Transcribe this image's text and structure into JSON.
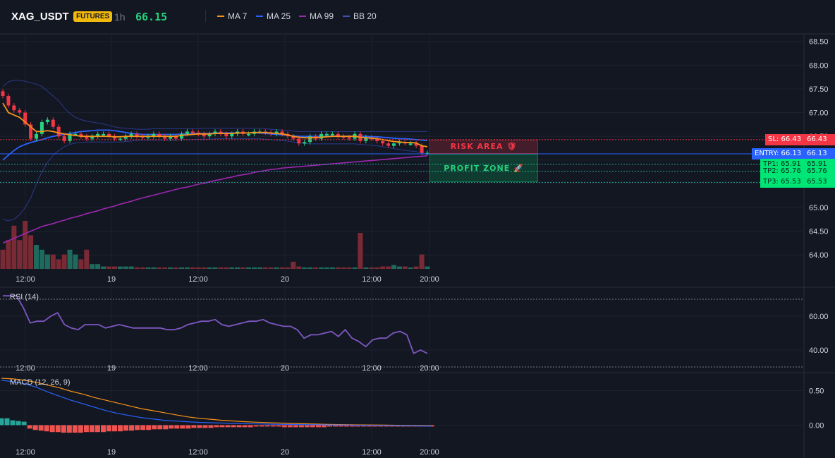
{
  "header": {
    "symbol": "XAG_USDT",
    "badge": "FUTURES",
    "timeframe": "1h",
    "last_price": "66.15",
    "legend": [
      {
        "label": "MA 7",
        "color": "#f7931a"
      },
      {
        "label": "MA 25",
        "color": "#2962ff"
      },
      {
        "label": "MA 99",
        "color": "#9c27b0"
      },
      {
        "label": "BB 20",
        "color": "#3f51b5"
      }
    ]
  },
  "levels": {
    "sl": {
      "label": "SL: 66.43",
      "value_text": "66.43",
      "value": 66.43,
      "color": "#f23645"
    },
    "entry": {
      "label": "ENTRY: 66.13",
      "value_text": "66.13",
      "value": 66.13,
      "color": "#2962ff"
    },
    "tp": [
      {
        "label": "TP1: 65.91",
        "value_text": "65.91",
        "value": 65.91
      },
      {
        "label": "TP2: 65.76",
        "value_text": "65.76",
        "value": 65.76
      },
      {
        "label": "TP3: 65.53",
        "value_text": "65.53",
        "value": 65.53
      }
    ],
    "tp_color": "#00e676",
    "risk_label": "RISK AREA 🛡",
    "profit_label": "PROFIT ZONE 🚀"
  },
  "chart_data": [
    {
      "type": "candlestick",
      "title": "",
      "ylim": [
        63.75,
        68.6
      ],
      "y_ticks": [
        "68.50",
        "68.00",
        "67.50",
        "67.00",
        "66.50",
        "66.00",
        "65.50",
        "65.00",
        "64.50",
        "64.00"
      ],
      "y_tick_values": [
        68.5,
        68.0,
        67.5,
        67.0,
        66.5,
        66.0,
        65.5,
        65.0,
        64.5,
        64.0
      ],
      "x_ticks": [
        "12:00",
        "19",
        "12:00",
        "20",
        "12:00",
        "20:00"
      ],
      "closes": [
        67.35,
        67.15,
        67.05,
        67.0,
        66.75,
        66.45,
        66.55,
        66.8,
        66.85,
        66.7,
        66.5,
        66.4,
        66.55,
        66.55,
        66.5,
        66.45,
        66.5,
        66.55,
        66.55,
        66.5,
        66.45,
        66.45,
        66.5,
        66.55,
        66.5,
        66.48,
        66.5,
        66.55,
        66.5,
        66.45,
        66.5,
        66.45,
        66.55,
        66.6,
        66.58,
        66.55,
        66.5,
        66.55,
        66.6,
        66.55,
        66.5,
        66.55,
        66.6,
        66.55,
        66.55,
        66.6,
        66.6,
        66.58,
        66.55,
        66.6,
        66.55,
        66.5,
        66.45,
        66.35,
        66.38,
        66.5,
        66.45,
        66.55,
        66.55,
        66.55,
        66.5,
        66.48,
        66.45,
        66.55,
        66.4,
        66.48,
        66.45,
        66.4,
        66.35,
        66.3,
        66.35,
        66.38,
        66.35,
        66.35,
        66.3,
        66.15,
        66.15
      ],
      "ma7": [
        67.2,
        67.0,
        66.95,
        66.9,
        66.8,
        66.7,
        66.6,
        66.6,
        66.62,
        66.6,
        66.57,
        66.55,
        66.53,
        66.52,
        66.5,
        66.5,
        66.5,
        66.5,
        66.5,
        66.5,
        66.49,
        66.49,
        66.5,
        66.5,
        66.5,
        66.5,
        66.5,
        66.5,
        66.5,
        66.5,
        66.5,
        66.5,
        66.52,
        66.53,
        66.54,
        66.55,
        66.55,
        66.55,
        66.56,
        66.56,
        66.56,
        66.56,
        66.57,
        66.57,
        66.57,
        66.58,
        66.58,
        66.58,
        66.57,
        66.56,
        66.55,
        66.53,
        66.5,
        66.48,
        66.47,
        66.47,
        66.47,
        66.48,
        66.49,
        66.5,
        66.5,
        66.5,
        66.5,
        66.5,
        66.48,
        66.47,
        66.46,
        66.45,
        66.43,
        66.41,
        66.39,
        66.38,
        66.37,
        66.37,
        66.36,
        66.3,
        66.28
      ],
      "ma25": [
        66.0,
        66.1,
        66.2,
        66.28,
        66.33,
        66.37,
        66.4,
        66.43,
        66.47,
        66.5,
        66.52,
        66.54,
        66.56,
        66.58,
        66.6,
        66.61,
        66.62,
        66.63,
        66.63,
        66.63,
        66.62,
        66.6,
        66.58,
        66.56,
        66.55,
        66.54,
        66.54,
        66.54,
        66.54,
        66.54,
        66.54,
        66.54,
        66.55,
        66.55,
        66.56,
        66.56,
        66.56,
        66.56,
        66.57,
        66.57,
        66.57,
        66.57,
        66.57,
        66.57,
        66.57,
        66.57,
        66.57,
        66.56,
        66.55,
        66.54,
        66.53,
        66.52,
        66.51,
        66.5,
        66.5,
        66.5,
        66.5,
        66.5,
        66.5,
        66.5,
        66.5,
        66.5,
        66.5,
        66.5,
        66.5,
        66.5,
        66.49,
        66.49,
        66.48,
        66.47,
        66.46,
        66.45,
        66.45,
        66.44,
        66.43,
        66.42,
        66.41
      ],
      "ma99": [
        64.25,
        64.3,
        64.35,
        64.4,
        64.45,
        64.5,
        64.55,
        64.6,
        64.63,
        64.66,
        64.7,
        64.73,
        64.77,
        64.8,
        64.83,
        64.87,
        64.9,
        64.93,
        64.97,
        65.0,
        65.03,
        65.07,
        65.1,
        65.13,
        65.17,
        65.2,
        65.23,
        65.26,
        65.29,
        65.32,
        65.35,
        65.38,
        65.41,
        65.43,
        65.46,
        65.49,
        65.51,
        65.54,
        65.57,
        65.59,
        65.62,
        65.64,
        65.67,
        65.69,
        65.71,
        65.74,
        65.76,
        65.78,
        65.8,
        65.81,
        65.83,
        65.84,
        65.85,
        65.86,
        65.87,
        65.88,
        65.89,
        65.9,
        65.91,
        65.92,
        65.93,
        65.94,
        65.95,
        65.96,
        65.97,
        65.98,
        65.99,
        66.0,
        66.01,
        66.02,
        66.03,
        66.04,
        66.05,
        66.06,
        66.07,
        66.08,
        66.09
      ],
      "bb_upper": [
        67.55,
        67.65,
        67.68,
        67.68,
        67.66,
        67.63,
        67.6,
        67.55,
        67.45,
        67.35,
        67.25,
        67.1,
        66.98,
        66.9,
        66.85,
        66.82,
        66.8,
        66.78,
        66.76,
        66.73,
        66.7,
        66.68,
        66.67,
        66.66,
        66.65,
        66.65,
        66.65,
        66.66,
        66.66,
        66.66,
        66.66,
        66.66,
        66.66,
        66.66,
        66.66,
        66.66,
        66.67,
        66.67,
        66.67,
        66.67,
        66.67,
        66.67,
        66.67,
        66.67,
        66.67,
        66.67,
        66.67,
        66.66,
        66.65,
        66.64,
        66.63,
        66.62,
        66.61,
        66.6,
        66.6,
        66.6,
        66.6,
        66.6,
        66.6,
        66.6,
        66.6,
        66.6,
        66.6,
        66.6,
        66.6,
        66.6,
        66.6,
        66.6,
        66.6,
        66.6,
        66.6,
        66.6,
        66.6,
        66.6,
        66.6,
        66.6,
        66.6
      ],
      "bb_lower": [
        64.75,
        64.72,
        64.75,
        64.85,
        65.0,
        65.2,
        65.5,
        65.75,
        65.95,
        66.1,
        66.2,
        66.28,
        66.33,
        66.36,
        66.37,
        66.38,
        66.38,
        66.38,
        66.38,
        66.38,
        66.38,
        66.38,
        66.39,
        66.4,
        66.41,
        66.42,
        66.42,
        66.42,
        66.42,
        66.42,
        66.42,
        66.42,
        66.43,
        66.43,
        66.43,
        66.44,
        66.44,
        66.44,
        66.45,
        66.45,
        66.45,
        66.45,
        66.45,
        66.45,
        66.45,
        66.45,
        66.45,
        66.44,
        66.43,
        66.42,
        66.41,
        66.4,
        66.38,
        66.36,
        66.35,
        66.34,
        66.34,
        66.34,
        66.34,
        66.34,
        66.34,
        66.34,
        66.34,
        66.34,
        66.33,
        66.32,
        66.31,
        66.3,
        66.28,
        66.26,
        66.24,
        66.22,
        66.2,
        66.19,
        66.18,
        66.15,
        66.12
      ],
      "volumes": [
        4,
        6,
        9,
        6,
        10,
        7,
        5,
        4,
        3,
        3,
        2,
        3,
        4,
        3,
        2,
        4,
        1,
        1,
        0.5,
        0.5,
        0.5,
        0.5,
        0.5,
        0.5,
        0.3,
        0.3,
        0.3,
        0.3,
        0.3,
        0.3,
        0.3,
        0.3,
        0.3,
        0.3,
        0.3,
        0.3,
        0.3,
        0.3,
        0.3,
        0.3,
        0.3,
        0.3,
        0.3,
        0.3,
        0.3,
        0.3,
        0.3,
        0.3,
        0.3,
        0.3,
        0.3,
        0.3,
        1.5,
        0.5,
        0.3,
        0.3,
        0.3,
        0.3,
        0.3,
        0.3,
        0.3,
        0.3,
        0.3,
        0.3,
        7.5,
        0.3,
        0.3,
        0.3,
        0.5,
        0.5,
        0.8,
        0.5,
        0.5,
        0.3,
        0.5,
        3,
        0.5
      ]
    },
    {
      "type": "line",
      "title": "RSI (14)",
      "ylim": [
        30,
        75
      ],
      "y_ticks": [
        "60.00",
        "40.00"
      ],
      "y_tick_values": [
        60,
        40
      ],
      "x_ticks": [
        "12:00",
        "19",
        "12:00",
        "20",
        "12:00",
        "20:00"
      ],
      "values": [
        72,
        72,
        72,
        65,
        56,
        57,
        57,
        60,
        62,
        55,
        53,
        52,
        55,
        55,
        55,
        53,
        54,
        55,
        54,
        53,
        53,
        53,
        53,
        53,
        52,
        52,
        53,
        55,
        56,
        57,
        57,
        58,
        55,
        54,
        55,
        56,
        57,
        57,
        58,
        56,
        55,
        54,
        54,
        52,
        47,
        49,
        49,
        50,
        51,
        48,
        52,
        47,
        45,
        42,
        46,
        47,
        47,
        50,
        51,
        49,
        38,
        40,
        38
      ]
    },
    {
      "type": "line",
      "title": "MACD (12, 26, 9)",
      "ylim": [
        -0.2,
        0.7
      ],
      "y_ticks": [
        "0.50",
        "0.00"
      ],
      "y_tick_values": [
        0.5,
        0.0
      ],
      "x_ticks": [
        "12:00",
        "19",
        "12:00",
        "20",
        "12:00",
        "20:00"
      ],
      "macd": [
        0.65,
        0.63,
        0.6,
        0.55,
        0.48,
        0.42,
        0.36,
        0.31,
        0.26,
        0.21,
        0.17,
        0.14,
        0.11,
        0.09,
        0.07,
        0.06,
        0.05,
        0.04,
        0.035,
        0.03,
        0.025,
        0.02,
        0.018,
        0.015,
        0.012,
        0.01,
        0.008,
        0.006,
        0.004,
        0.002,
        0.0,
        -0.002,
        -0.004,
        -0.006,
        -0.008,
        -0.01,
        -0.012,
        -0.015
      ],
      "signal": [
        0.68,
        0.67,
        0.65,
        0.62,
        0.58,
        0.54,
        0.49,
        0.45,
        0.4,
        0.36,
        0.32,
        0.28,
        0.24,
        0.21,
        0.18,
        0.15,
        0.12,
        0.1,
        0.085,
        0.07,
        0.06,
        0.05,
        0.042,
        0.035,
        0.03,
        0.025,
        0.02,
        0.016,
        0.012,
        0.009,
        0.006,
        0.004,
        0.002,
        0.0,
        -0.002,
        -0.004,
        -0.006,
        -0.008
      ],
      "histogram": [
        0.1,
        0.1,
        0.07,
        0.06,
        0.05,
        -0.05,
        -0.07,
        -0.08,
        -0.09,
        -0.1,
        -0.1,
        -0.11,
        -0.11,
        -0.11,
        -0.11,
        -0.1,
        -0.1,
        -0.1,
        -0.1,
        -0.09,
        -0.09,
        -0.09,
        -0.08,
        -0.08,
        -0.07,
        -0.07,
        -0.07,
        -0.06,
        -0.06,
        -0.06,
        -0.05,
        -0.05,
        -0.05,
        -0.05,
        -0.04,
        -0.04,
        -0.04,
        -0.04,
        -0.03,
        -0.03,
        -0.03,
        -0.03,
        -0.03,
        -0.03,
        -0.03,
        -0.02,
        -0.02,
        -0.02,
        -0.02,
        -0.02,
        -0.03,
        -0.03,
        -0.03,
        -0.03,
        -0.03,
        -0.03,
        -0.03,
        -0.03,
        -0.02,
        -0.02,
        -0.02,
        -0.02,
        -0.02,
        -0.02,
        -0.02,
        -0.02,
        -0.02,
        -0.02,
        -0.02,
        -0.02,
        -0.02,
        -0.02,
        -0.02,
        -0.02,
        -0.02,
        -0.02,
        -0.02
      ]
    }
  ]
}
